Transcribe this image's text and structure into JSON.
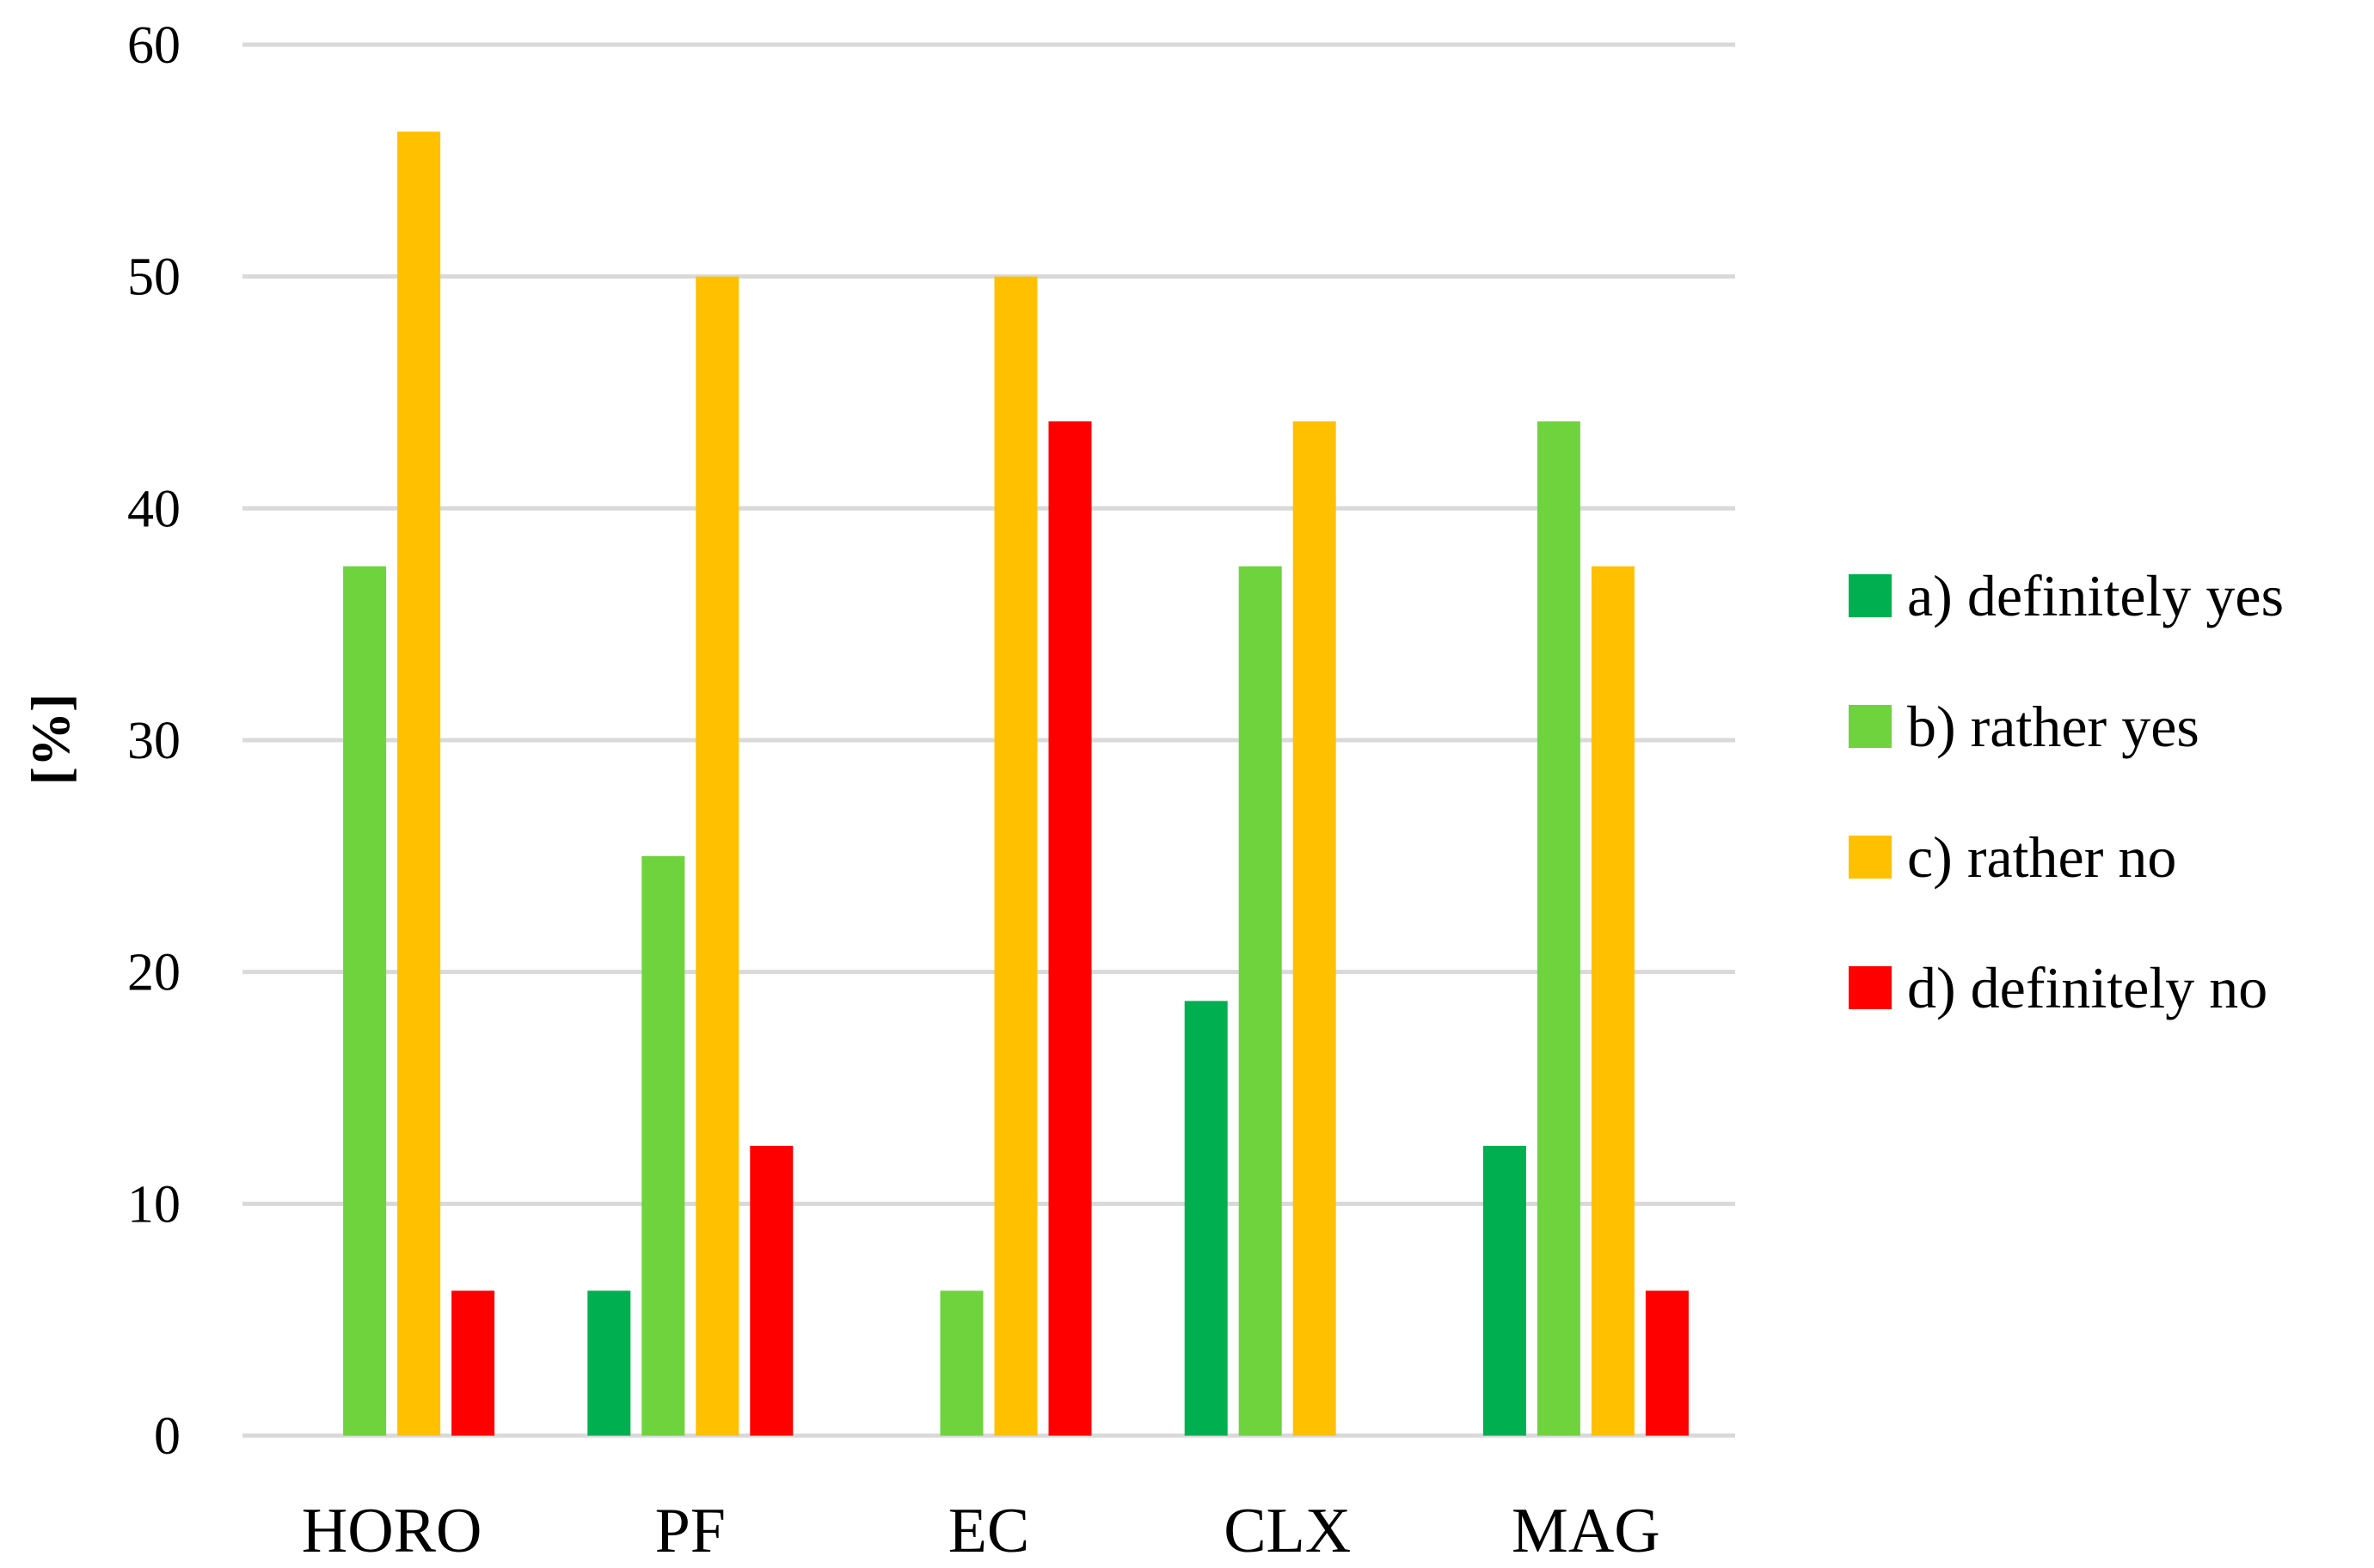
{
  "chart_data": {
    "type": "bar",
    "categories": [
      "HORO",
      "PF",
      "EC",
      "CLX",
      "MAG"
    ],
    "series": [
      {
        "name": "a) definitely yes",
        "color": "#00B050",
        "values": [
          0,
          6.25,
          0,
          18.75,
          12.5
        ]
      },
      {
        "name": "b) rather yes",
        "color": "#6FD33E",
        "values": [
          37.5,
          25,
          6.25,
          37.5,
          43.75
        ]
      },
      {
        "name": "c) rather no",
        "color": "#FFC000",
        "values": [
          56.25,
          50,
          50,
          43.75,
          37.5
        ]
      },
      {
        "name": "d) definitely no",
        "color": "#FF0000",
        "values": [
          6.25,
          12.5,
          43.75,
          0,
          6.25
        ]
      }
    ],
    "title": "",
    "xlabel": "",
    "ylabel": "[%]",
    "ylim": [
      0,
      60
    ],
    "yticks": [
      0,
      10,
      20,
      30,
      40,
      50,
      60
    ],
    "grid": true,
    "grid_color": "#D9D9D9",
    "legend_position": "right"
  }
}
